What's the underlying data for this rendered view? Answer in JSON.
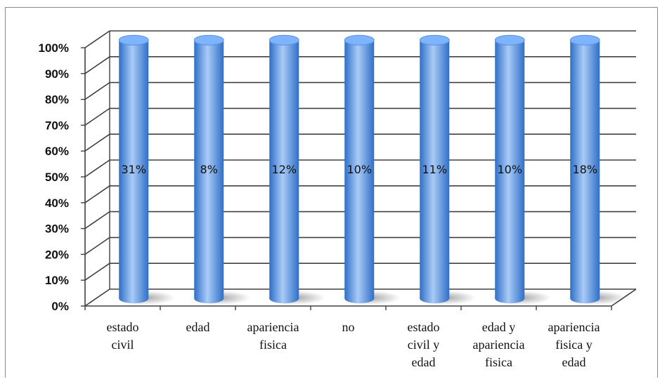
{
  "chart_data": {
    "type": "bar",
    "style": "3d-cylinder-100-percent",
    "title": "",
    "xlabel": "",
    "ylabel": "",
    "ylim": [
      0,
      100
    ],
    "ytick_labels": [
      "0%",
      "10%",
      "20%",
      "30%",
      "40%",
      "50%",
      "60%",
      "70%",
      "80%",
      "90%",
      "100%"
    ],
    "categories": [
      [
        "estado",
        "civil"
      ],
      [
        "edad"
      ],
      [
        "apariencia",
        "fisica"
      ],
      [
        "no"
      ],
      [
        "estado",
        "civil y",
        "edad"
      ],
      [
        "edad y",
        "apariencia",
        "fisica"
      ],
      [
        "apariencia",
        "fisica y",
        "edad"
      ]
    ],
    "values": [
      100,
      100,
      100,
      100,
      100,
      100,
      100
    ],
    "data_labels": [
      "31%",
      "8%",
      "12%",
      "10%",
      "11%",
      "10%",
      "18%"
    ],
    "grid": true,
    "legend": "none",
    "colors": {
      "bar_dark": "#2f6fc7",
      "bar_mid": "#5b93e0",
      "bar_light": "#a9cbf7",
      "top": "#7db3ff",
      "grid": "#404040"
    }
  }
}
